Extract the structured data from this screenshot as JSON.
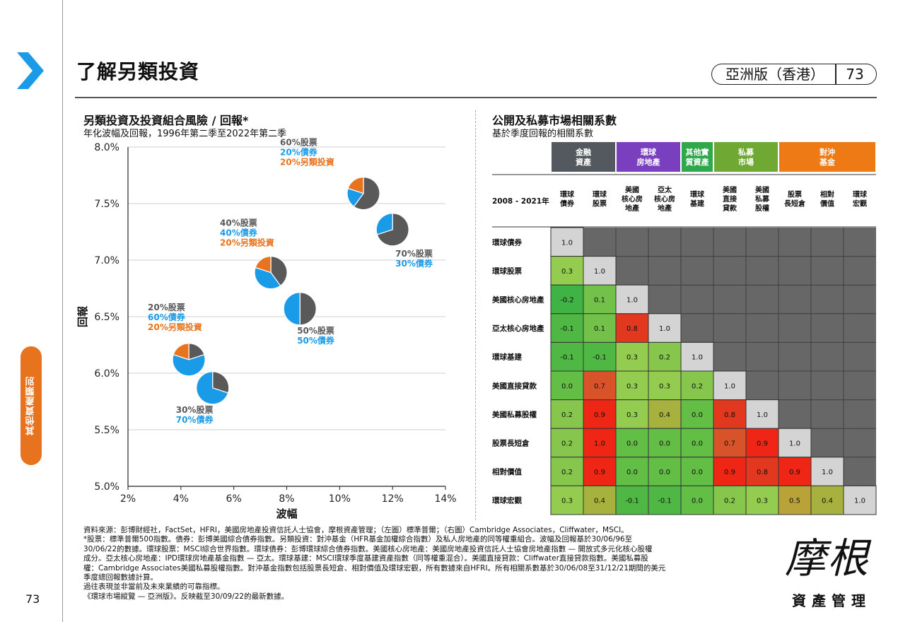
{
  "header": {
    "title": "了解另類投資",
    "region": "亞洲版（香港）",
    "page_number": "73"
  },
  "sidebar": {
    "category": "其他資產類別",
    "page_number": "73"
  },
  "left_chart": {
    "title": "另類投資及投資組合風險 / 回報*",
    "subtitle": "年化波幅及回報，1996年第二季至2022年第二季"
  },
  "right_chart": {
    "title": "公開及私募市場相關系數",
    "subtitle": "基於季度回報的相關系數"
  },
  "colors": {
    "stocks": "#595959",
    "bonds": "#1a9be8",
    "alts": "#e8731e",
    "fin_group": "#53595e",
    "realestate_group": "#7a3fbf",
    "real_assets_group": "#2ea84b",
    "private_group": "#6fa832",
    "hedge_group": "#ee7a16"
  },
  "chart_data": [
    {
      "type": "scatter",
      "xlabel": "波幅",
      "ylabel": "回報",
      "xlim": [
        2,
        14
      ],
      "ylim": [
        5.0,
        8.0
      ],
      "x_ticks": [
        "2%",
        "4%",
        "6%",
        "8%",
        "10%",
        "12%",
        "14%"
      ],
      "y_ticks": [
        "5.0%",
        "5.5%",
        "6.0%",
        "6.5%",
        "7.0%",
        "7.5%",
        "8.0%"
      ],
      "grid": true,
      "points": [
        {
          "x": 4.3,
          "y": 6.12,
          "mix": [
            20,
            60,
            20
          ],
          "lines": [
            "20%股票",
            "60%債券",
            "20%另類投資"
          ]
        },
        {
          "x": 5.2,
          "y": 5.87,
          "mix": [
            30,
            70,
            0
          ],
          "lines": [
            "30%股票",
            "70%債券"
          ]
        },
        {
          "x": 7.4,
          "y": 6.89,
          "mix": [
            40,
            40,
            20
          ],
          "lines": [
            "40%股票",
            "40%債券",
            "20%另類投資"
          ]
        },
        {
          "x": 8.5,
          "y": 6.57,
          "mix": [
            50,
            50,
            0
          ],
          "lines": [
            "50%股票",
            "50%債券"
          ]
        },
        {
          "x": 10.9,
          "y": 7.59,
          "mix": [
            60,
            20,
            20
          ],
          "lines": [
            "60%股票",
            "20%債券",
            "20%另類投資"
          ]
        },
        {
          "x": 12.0,
          "y": 7.27,
          "mix": [
            70,
            30,
            0
          ],
          "lines": [
            "70%股票",
            "30%債券"
          ]
        }
      ]
    },
    {
      "type": "heatmap",
      "period_label": "2008 - 2021年",
      "groups": [
        {
          "label": "金融\n資產",
          "span": 2,
          "color": "#53595e"
        },
        {
          "label": "環球\n房地產",
          "span": 2,
          "color": "#7a3fbf"
        },
        {
          "label": "其他實\n質資產",
          "span": 1,
          "color": "#2ea84b"
        },
        {
          "label": "私募\n市場",
          "span": 2,
          "color": "#6fa832"
        },
        {
          "label": "對沖\n基金",
          "span": 3,
          "color": "#ee7a16"
        }
      ],
      "columns": [
        "環球\n債券",
        "環球\n股票",
        "美國\n核心房\n地產",
        "亞太\n核心房\n地產",
        "環球\n基建",
        "美國\n直接\n貸款",
        "美國\n私募\n股權",
        "股票\n長短倉",
        "相對\n價值",
        "環球\n宏觀"
      ],
      "rows": [
        "環球債券",
        "環球股票",
        "美國核心房地產",
        "亞太核心房地產",
        "環球基建",
        "美國直接貸款",
        "美國私募股權",
        "股票長短倉",
        "相對價值",
        "環球宏觀"
      ],
      "values": [
        [
          1.0
        ],
        [
          0.3,
          1.0
        ],
        [
          -0.2,
          0.1,
          1.0
        ],
        [
          -0.1,
          0.1,
          0.8,
          1.0
        ],
        [
          -0.1,
          -0.1,
          0.3,
          0.2,
          1.0
        ],
        [
          0.0,
          0.7,
          0.3,
          0.3,
          0.2,
          1.0
        ],
        [
          0.2,
          0.9,
          0.3,
          0.4,
          0.0,
          0.8,
          1.0
        ],
        [
          0.2,
          1.0,
          0.0,
          0.0,
          0.0,
          0.7,
          0.9,
          1.0
        ],
        [
          0.2,
          0.9,
          0.0,
          0.0,
          0.0,
          0.9,
          0.8,
          0.9,
          1.0
        ],
        [
          0.3,
          0.4,
          -0.1,
          -0.1,
          0.0,
          0.2,
          0.3,
          0.5,
          0.4,
          1.0
        ]
      ]
    }
  ],
  "footnotes": [
    "資料來源：彭博財經社，FactSet，HFRI，美國房地產投資信託人士協會，摩根資產管理；（左圖）標準普爾；（右圖）Cambridge Associates，Cliffwater，MSCI。",
    "*股票：標準普爾500指數。債券：彭博美國綜合債券指數。另類投資：對沖基金（HFR基金加權綜合指數）及私人房地產的同等權重組合。波幅及回報基於30/06/96至",
    "30/06/22的數據。環球股票：MSCI綜合世界指數。環球債券：彭博環球綜合債券指數。美國核心房地產：美國房地產投資信託人士協會房地產指數 — 開放式多元化核心股權",
    "成分。亞太核心房地產：IPD環球房地產基金指數 — 亞太。環球基建：MSCI環球季度基建資產指數（同等權重混合）。美國直接貸款：Cliffwater直接貸款指數。美國私募股",
    "權：Cambridge Associates美國私募股權指數。對沖基金指數包括股票長短倉、相對價值及環球宏觀，所有數據來自HFRI。所有相關系數基於30/06/08至31/12/21期間的美元",
    "季度總回報數據計算。",
    "過往表現並非當前及未來業績的可靠指標。",
    "《環球市場縱覽 — 亞洲版》。反映截至30/09/22的最新數據。"
  ],
  "logo": {
    "main": "摩根",
    "sub": "資產管理"
  }
}
